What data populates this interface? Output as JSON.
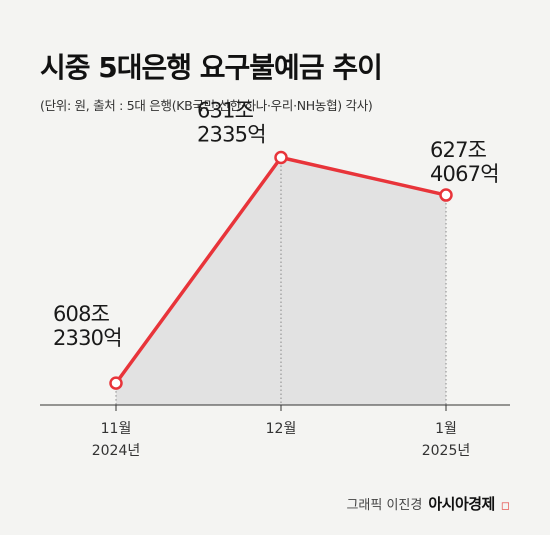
{
  "header": {
    "title": "시중 5대은행 요구불예금 추이",
    "subtitle": "(단위: 원, 출처 : 5대 은행(KB국민·신한·하나·우리·NH농협) 각사)"
  },
  "chart_data": {
    "type": "area",
    "title": "시중 5대은행 요구불예금 추이",
    "xlabel": "",
    "ylabel": "",
    "categories": [
      "11월",
      "12월",
      "1월"
    ],
    "years": [
      "2024년",
      "",
      "2025년"
    ],
    "values": [
      608.233,
      631.2335,
      627.4067
    ],
    "value_labels": [
      [
        "608조",
        "2330억"
      ],
      [
        "631조",
        "2335억"
      ],
      [
        "627조",
        "4067억"
      ]
    ],
    "ylim": [
      606,
      632
    ],
    "grid": false,
    "legend": "none",
    "line_color": "#e8343a",
    "fill_color": "#e2e2e2"
  },
  "footer": {
    "credit": "그래픽 이진경",
    "brand": "아시아경제"
  }
}
